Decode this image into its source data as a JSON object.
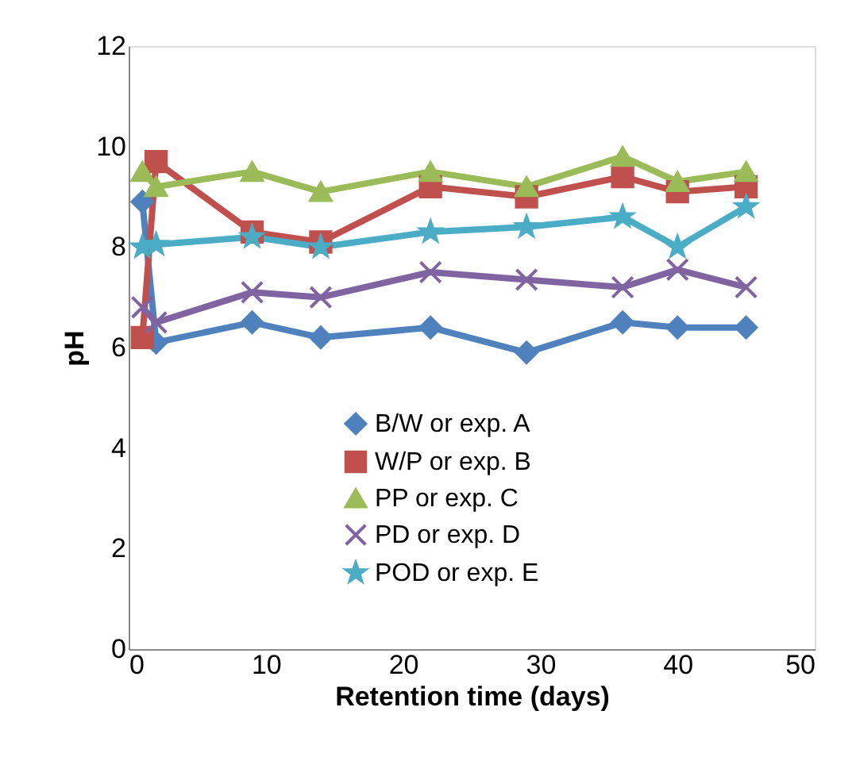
{
  "chart_data": {
    "type": "line",
    "xlabel": "Retention time (days)",
    "ylabel": "pH",
    "x": [
      1,
      2,
      9,
      14,
      22,
      29,
      36,
      40,
      45
    ],
    "series": [
      {
        "name": "B/W  or exp. A",
        "color": "#4f81bd",
        "marker": "diamond",
        "values": [
          8.9,
          6.1,
          6.5,
          6.2,
          6.4,
          5.9,
          6.5,
          6.4,
          6.4
        ]
      },
      {
        "name": "W/P or exp. B",
        "color": "#c0504d",
        "marker": "square",
        "values": [
          6.2,
          9.7,
          8.3,
          8.1,
          9.2,
          9.0,
          9.4,
          9.1,
          9.2
        ]
      },
      {
        "name": "PP or exp. C",
        "color": "#9bbb59",
        "marker": "triangle",
        "values": [
          9.5,
          9.2,
          9.5,
          9.1,
          9.5,
          9.2,
          9.8,
          9.3,
          9.5
        ]
      },
      {
        "name": "PD or exp. D",
        "color": "#8064a2",
        "marker": "cross",
        "values": [
          6.8,
          6.5,
          7.1,
          7.0,
          7.5,
          7.35,
          7.2,
          7.55,
          7.2
        ]
      },
      {
        "name": "POD or exp. E",
        "color": "#4bacc6",
        "marker": "star",
        "values": [
          8.0,
          8.05,
          8.2,
          8.0,
          8.3,
          8.4,
          8.6,
          8.0,
          8.8
        ]
      }
    ],
    "xlim": [
      0,
      50
    ],
    "xticks": [
      0,
      10,
      20,
      30,
      40,
      50
    ],
    "ylim": [
      0,
      12
    ],
    "yticks": [
      0,
      2,
      4,
      6,
      8,
      10,
      12
    ],
    "grid": false,
    "legend": "bottom",
    "line_style": "solid"
  }
}
